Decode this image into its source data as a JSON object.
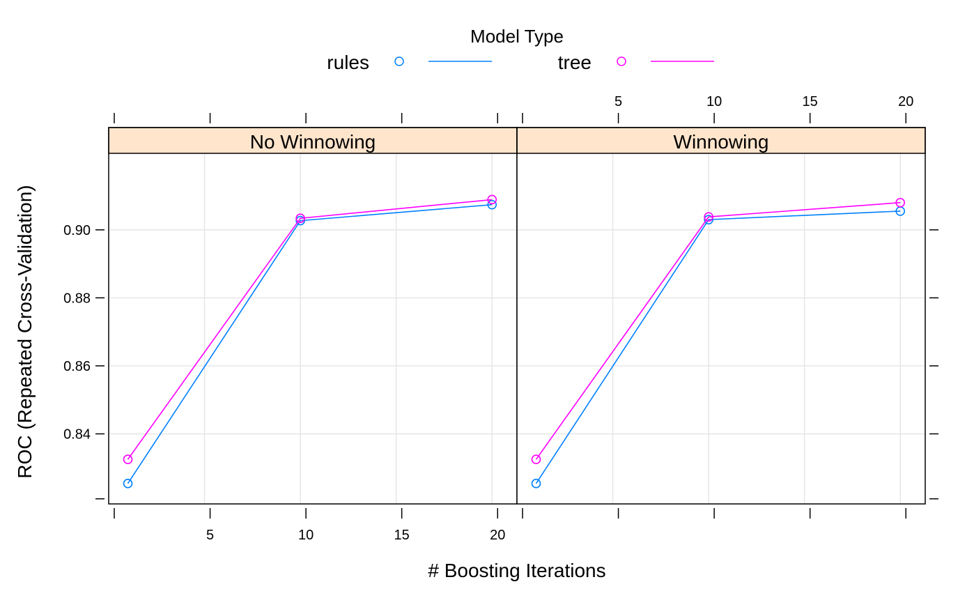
{
  "chart_data": {
    "type": "line",
    "legend": {
      "title": "Model Type",
      "placement": "top",
      "entries": [
        {
          "label": "rules",
          "color": "#0080ff"
        },
        {
          "label": "tree",
          "color": "#ff00ff"
        }
      ]
    },
    "xlabel": "# Boosting Iterations",
    "ylabel": "ROC (Repeated Cross-Validation)",
    "xlim": [
      0,
      21.3
    ],
    "ylim": [
      0.8194,
      0.9225
    ],
    "x_ticks": [
      5,
      10,
      15,
      20
    ],
    "y_ticks": [
      0.84,
      0.86,
      0.88,
      0.9
    ],
    "x_tick_labels": [
      "5",
      "10",
      "15",
      "20"
    ],
    "y_tick_labels": [
      "0.84",
      "0.86",
      "0.88",
      "0.90"
    ],
    "grid": true,
    "panels": [
      {
        "strip": "No Winnowing",
        "x": [
          1,
          10,
          20
        ],
        "series": [
          {
            "name": "rules",
            "values": [
              0.8254,
              0.9027,
              0.9074
            ]
          },
          {
            "name": "tree",
            "values": [
              0.8325,
              0.9034,
              0.9089
            ]
          }
        ]
      },
      {
        "strip": "Winnowing",
        "x": [
          1,
          10,
          20
        ],
        "series": [
          {
            "name": "rules",
            "values": [
              0.8254,
              0.903,
              0.9055
            ]
          },
          {
            "name": "tree",
            "values": [
              0.8325,
              0.9038,
              0.908
            ]
          }
        ]
      }
    ]
  }
}
